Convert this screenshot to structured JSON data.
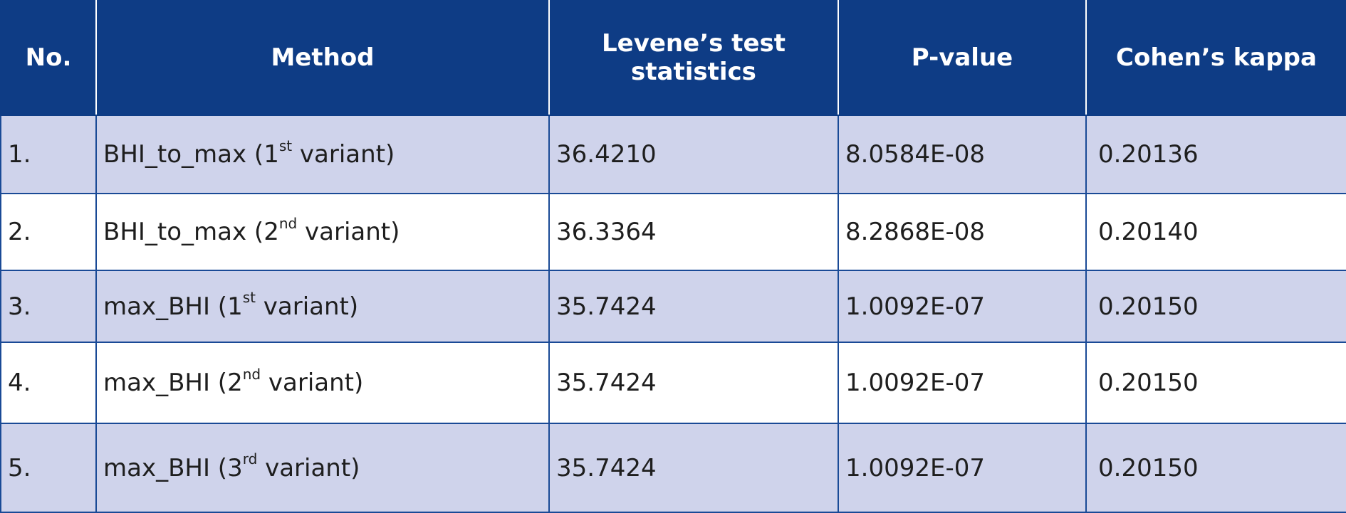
{
  "table": {
    "headers": {
      "no": "No.",
      "method": "Method",
      "levene_line1": "Levene’s test",
      "levene_line2": "statistics",
      "pvalue": "P-value",
      "kappa": "Cohen’s kappa"
    },
    "rows": [
      {
        "no": "1.",
        "method_base": "BHI_to_max (1",
        "method_sup": "st",
        "method_tail": " variant)",
        "levene": "36.4210",
        "pvalue": "8.0584E-08",
        "kappa": "0.20136"
      },
      {
        "no": "2.",
        "method_base": "BHI_to_max (2",
        "method_sup": "nd",
        "method_tail": " variant)",
        "levene": "36.3364",
        "pvalue": "8.2868E-08",
        "kappa": "0.20140"
      },
      {
        "no": "3.",
        "method_base": "max_BHI (1",
        "method_sup": "st",
        "method_tail": " variant)",
        "levene": "35.7424",
        "pvalue": "1.0092E-07",
        "kappa": "0.20150"
      },
      {
        "no": "4.",
        "method_base": "max_BHI (2",
        "method_sup": "nd",
        "method_tail": " variant)",
        "levene": "35.7424",
        "pvalue": "1.0092E-07",
        "kappa": "0.20150"
      },
      {
        "no": "5.",
        "method_base": "max_BHI (3",
        "method_sup": "rd",
        "method_tail": " variant)",
        "levene": "35.7424",
        "pvalue": "1.0092E-07",
        "kappa": "0.20150"
      }
    ],
    "colors": {
      "header_bg": "#0e3c85",
      "shaded_row_bg": "#cfd3eb",
      "plain_row_bg": "#ffffff",
      "border": "#1a4a96"
    }
  }
}
